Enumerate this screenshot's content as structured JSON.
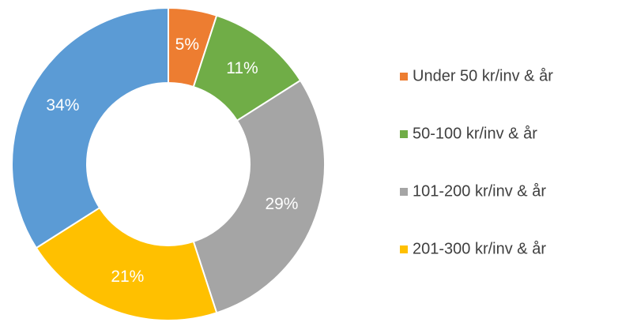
{
  "chart_data": {
    "type": "donut",
    "categories": [
      "Under 50 kr/inv & år",
      "50-100 kr/inv & år",
      "101-200 kr/inv & år",
      "201-300 kr/inv & år",
      null
    ],
    "values": [
      5,
      11,
      29,
      21,
      34
    ],
    "value_labels": [
      "5%",
      "11%",
      "29%",
      "21%",
      "34%"
    ],
    "colors": [
      "#ed7d31",
      "#70ad47",
      "#a5a5a5",
      "#ffc000",
      "#5b9bd5"
    ],
    "legend": "right"
  }
}
